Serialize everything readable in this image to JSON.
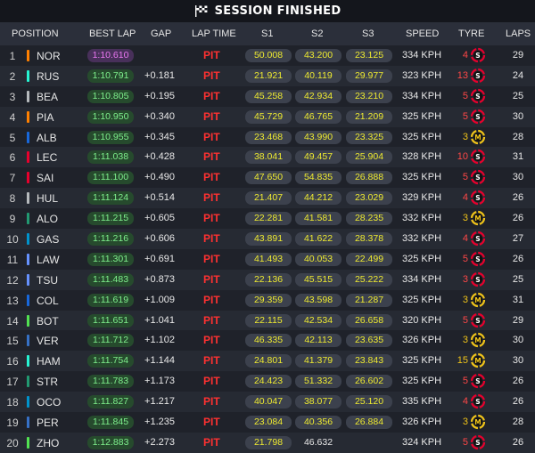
{
  "banner": {
    "title": "SESSION FINISHED",
    "icon": "checkered-flag-icon"
  },
  "headers": {
    "position": "POSITION",
    "best_lap": "BEST LAP",
    "gap": "GAP",
    "lap_time": "LAP TIME",
    "s1": "S1",
    "s2": "S2",
    "s3": "S3",
    "speed": "SPEED",
    "tyre": "TYRE",
    "laps": "LAPS"
  },
  "colors": {
    "team": {
      "mclaren": "#ff8000",
      "mercedes": "#27f4d2",
      "haas": "#b6babd",
      "williams": "#1868db",
      "ferrari": "#e8002d",
      "aston": "#229971",
      "alpine": "#0093cc",
      "rb": "#6692ff",
      "redbull": "#3671c6",
      "sauber": "#52e252"
    },
    "soft": "#e8002d",
    "medium": "#f0c419"
  },
  "rows": [
    {
      "pos": "1",
      "code": "NOR",
      "team": "#ff8000",
      "best": "1:10.610",
      "fastest": true,
      "gap": "",
      "lap_time": "PIT",
      "s1": "50.008",
      "s2": "43.200",
      "s3": "23.125",
      "speed": "334 KPH",
      "tyre_age": "4",
      "tyre": "S",
      "laps": "29"
    },
    {
      "pos": "2",
      "code": "RUS",
      "team": "#27f4d2",
      "best": "1:10.791",
      "fastest": false,
      "gap": "+0.181",
      "lap_time": "PIT",
      "s1": "21.921",
      "s2": "40.119",
      "s3": "29.977",
      "speed": "323 KPH",
      "tyre_age": "13",
      "tyre": "S",
      "laps": "24"
    },
    {
      "pos": "3",
      "code": "BEA",
      "team": "#b6babd",
      "best": "1:10.805",
      "fastest": false,
      "gap": "+0.195",
      "lap_time": "PIT",
      "s1": "45.258",
      "s2": "42.934",
      "s3": "23.210",
      "speed": "334 KPH",
      "tyre_age": "5",
      "tyre": "S",
      "laps": "25"
    },
    {
      "pos": "4",
      "code": "PIA",
      "team": "#ff8000",
      "best": "1:10.950",
      "fastest": false,
      "gap": "+0.340",
      "lap_time": "PIT",
      "s1": "45.729",
      "s2": "46.765",
      "s3": "21.209",
      "speed": "325 KPH",
      "tyre_age": "5",
      "tyre": "S",
      "laps": "30"
    },
    {
      "pos": "5",
      "code": "ALB",
      "team": "#1868db",
      "best": "1:10.955",
      "fastest": false,
      "gap": "+0.345",
      "lap_time": "PIT",
      "s1": "23.468",
      "s2": "43.990",
      "s3": "23.325",
      "speed": "325 KPH",
      "tyre_age": "3",
      "tyre": "M",
      "laps": "28"
    },
    {
      "pos": "6",
      "code": "LEC",
      "team": "#e8002d",
      "best": "1:11.038",
      "fastest": false,
      "gap": "+0.428",
      "lap_time": "PIT",
      "s1": "38.041",
      "s2": "49.457",
      "s3": "25.904",
      "speed": "328 KPH",
      "tyre_age": "10",
      "tyre": "S",
      "laps": "31"
    },
    {
      "pos": "7",
      "code": "SAI",
      "team": "#e8002d",
      "best": "1:11.100",
      "fastest": false,
      "gap": "+0.490",
      "lap_time": "PIT",
      "s1": "47.650",
      "s2": "54.835",
      "s3": "26.888",
      "speed": "325 KPH",
      "tyre_age": "5",
      "tyre": "S",
      "laps": "30"
    },
    {
      "pos": "8",
      "code": "HUL",
      "team": "#b6babd",
      "best": "1:11.124",
      "fastest": false,
      "gap": "+0.514",
      "lap_time": "PIT",
      "s1": "21.407",
      "s2": "44.212",
      "s3": "23.029",
      "speed": "329 KPH",
      "tyre_age": "4",
      "tyre": "S",
      "laps": "26"
    },
    {
      "pos": "9",
      "code": "ALO",
      "team": "#229971",
      "best": "1:11.215",
      "fastest": false,
      "gap": "+0.605",
      "lap_time": "PIT",
      "s1": "22.281",
      "s2": "41.581",
      "s3": "28.235",
      "speed": "332 KPH",
      "tyre_age": "3",
      "tyre": "M",
      "laps": "26"
    },
    {
      "pos": "10",
      "code": "GAS",
      "team": "#0093cc",
      "best": "1:11.216",
      "fastest": false,
      "gap": "+0.606",
      "lap_time": "PIT",
      "s1": "43.891",
      "s2": "41.622",
      "s3": "28.378",
      "speed": "332 KPH",
      "tyre_age": "4",
      "tyre": "S",
      "laps": "27"
    },
    {
      "pos": "11",
      "code": "LAW",
      "team": "#6692ff",
      "best": "1:11.301",
      "fastest": false,
      "gap": "+0.691",
      "lap_time": "PIT",
      "s1": "41.493",
      "s2": "40.053",
      "s3": "22.499",
      "speed": "325 KPH",
      "tyre_age": "5",
      "tyre": "S",
      "laps": "26"
    },
    {
      "pos": "12",
      "code": "TSU",
      "team": "#6692ff",
      "best": "1:11.483",
      "fastest": false,
      "gap": "+0.873",
      "lap_time": "PIT",
      "s1": "22.136",
      "s2": "45.515",
      "s3": "25.222",
      "speed": "334 KPH",
      "tyre_age": "3",
      "tyre": "S",
      "laps": "25"
    },
    {
      "pos": "13",
      "code": "COL",
      "team": "#1868db",
      "best": "1:11.619",
      "fastest": false,
      "gap": "+1.009",
      "lap_time": "PIT",
      "s1": "29.359",
      "s2": "43.598",
      "s3": "21.287",
      "speed": "325 KPH",
      "tyre_age": "3",
      "tyre": "M",
      "laps": "31"
    },
    {
      "pos": "14",
      "code": "BOT",
      "team": "#52e252",
      "best": "1:11.651",
      "fastest": false,
      "gap": "+1.041",
      "lap_time": "PIT",
      "s1": "22.115",
      "s2": "42.534",
      "s3": "26.658",
      "speed": "320 KPH",
      "tyre_age": "5",
      "tyre": "S",
      "laps": "29"
    },
    {
      "pos": "15",
      "code": "VER",
      "team": "#3671c6",
      "best": "1:11.712",
      "fastest": false,
      "gap": "+1.102",
      "lap_time": "PIT",
      "s1": "46.335",
      "s2": "42.113",
      "s3": "23.635",
      "speed": "326 KPH",
      "tyre_age": "3",
      "tyre": "M",
      "laps": "30"
    },
    {
      "pos": "16",
      "code": "HAM",
      "team": "#27f4d2",
      "best": "1:11.754",
      "fastest": false,
      "gap": "+1.144",
      "lap_time": "PIT",
      "s1": "24.801",
      "s2": "41.379",
      "s3": "23.843",
      "speed": "325 KPH",
      "tyre_age": "15",
      "tyre": "M",
      "laps": "30"
    },
    {
      "pos": "17",
      "code": "STR",
      "team": "#229971",
      "best": "1:11.783",
      "fastest": false,
      "gap": "+1.173",
      "lap_time": "PIT",
      "s1": "24.423",
      "s2": "51.332",
      "s3": "26.602",
      "speed": "325 KPH",
      "tyre_age": "5",
      "tyre": "S",
      "laps": "26"
    },
    {
      "pos": "18",
      "code": "OCO",
      "team": "#0093cc",
      "best": "1:11.827",
      "fastest": false,
      "gap": "+1.217",
      "lap_time": "PIT",
      "s1": "40.047",
      "s2": "38.077",
      "s3": "25.120",
      "speed": "335 KPH",
      "tyre_age": "4",
      "tyre": "S",
      "laps": "26"
    },
    {
      "pos": "19",
      "code": "PER",
      "team": "#3671c6",
      "best": "1:11.845",
      "fastest": false,
      "gap": "+1.235",
      "lap_time": "PIT",
      "s1": "23.084",
      "s2": "40.356",
      "s3": "26.884",
      "speed": "326 KPH",
      "tyre_age": "3",
      "tyre": "M",
      "laps": "28"
    },
    {
      "pos": "20",
      "code": "ZHO",
      "team": "#52e252",
      "best": "1:12.883",
      "fastest": false,
      "gap": "+2.273",
      "lap_time": "PIT",
      "s1": "21.798",
      "s2": "46.632",
      "s3": "",
      "speed": "324 KPH",
      "tyre_age": "5",
      "tyre": "S",
      "laps": "26"
    }
  ]
}
